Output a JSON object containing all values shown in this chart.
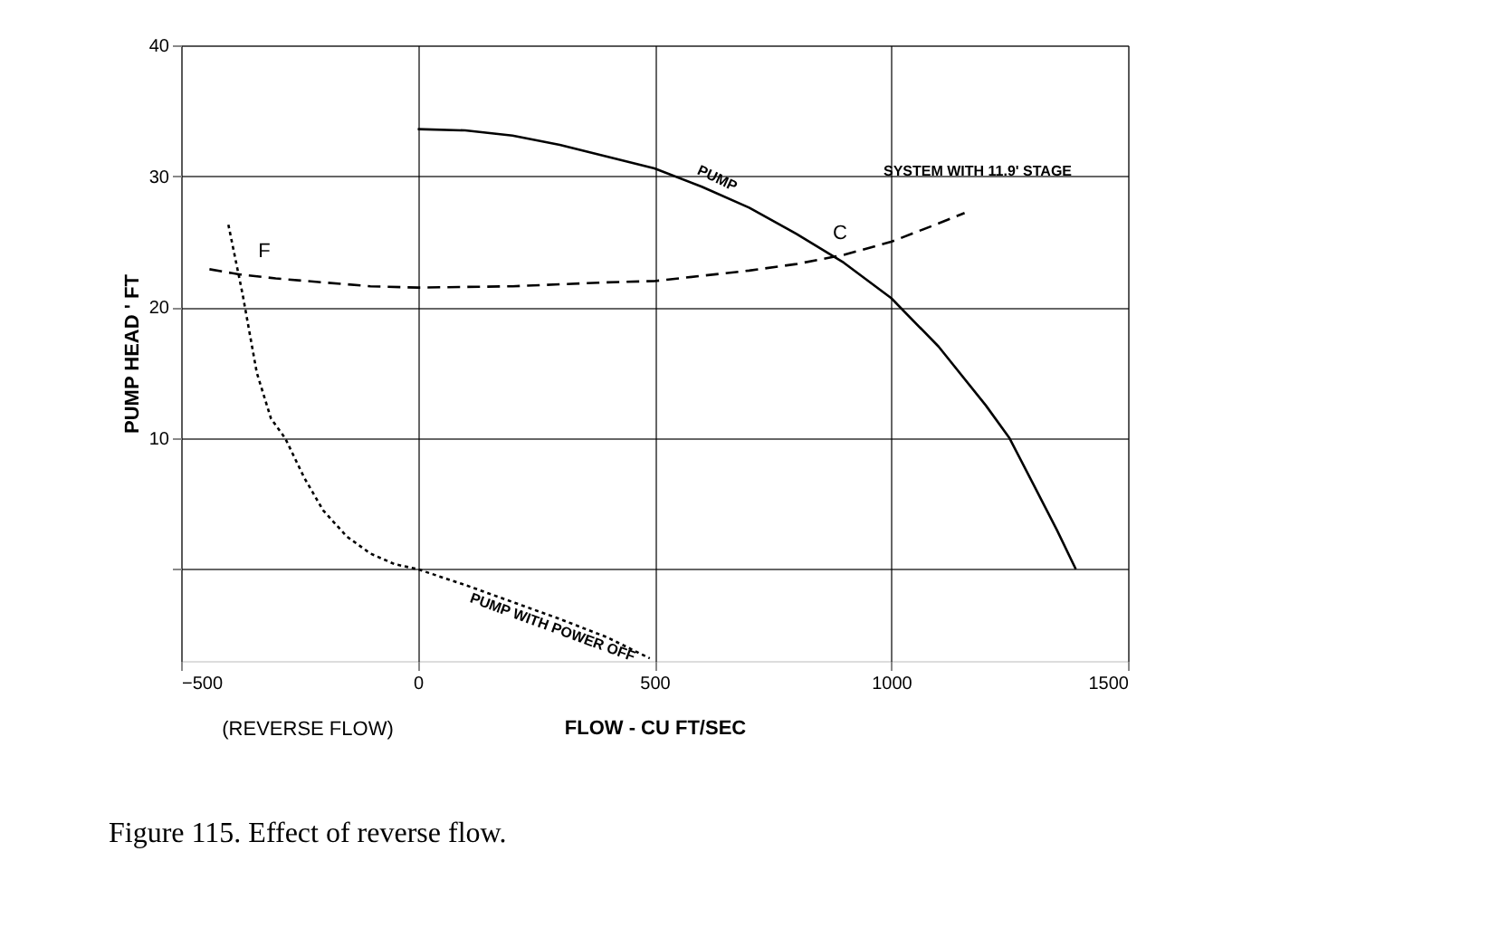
{
  "chart_data": {
    "type": "line",
    "xlabel": "FLOW - CU FT/SEC",
    "ylabel": "PUMP HEAD ' FT",
    "xlim": [
      -500,
      1500
    ],
    "xticks": [
      -500,
      0,
      500,
      {
        "value": 1000,
        "label": "1000"
      },
      {
        "value": 1500,
        "label": "1500"
      }
    ],
    "ylim": [
      -7,
      40
    ],
    "yticks": [
      {
        "value": 0,
        "label": null
      },
      10,
      20,
      30,
      40
    ],
    "grid": true,
    "marker": "none",
    "series": [
      {
        "color": "#000000",
        "line_style": "solid",
        "x": [
          0,
          100,
          200,
          300,
          400,
          500,
          600,
          700,
          800,
          900,
          1000,
          1100,
          1200,
          1250,
          1300,
          1350,
          1390
        ],
        "values": [
          33.6,
          33.5,
          33.1,
          32.4,
          31.5,
          30.6,
          29.2,
          27.6,
          25.6,
          23.4,
          20.7,
          17,
          12.5,
          10,
          6.5,
          3,
          0
        ]
      },
      {
        "color": "#000000",
        "line_style": "dashed",
        "x": [
          -440,
          -375,
          -300,
          -200,
          -100,
          0,
          200,
          400,
          500,
          600,
          700,
          800,
          900,
          1000,
          1100,
          1155
        ],
        "values": [
          22.9,
          22.5,
          22.2,
          21.9,
          21.6,
          21.5,
          21.6,
          21.9,
          22.0,
          22.4,
          22.8,
          23.3,
          24.0,
          25.0,
          26.4,
          27.2
        ]
      },
      {
        "color": "#000000",
        "line_style": "dotted",
        "x": [
          -400,
          -370,
          -340,
          -310,
          -280,
          -240,
          -200,
          -150,
          -100,
          -50,
          0,
          100,
          200,
          300,
          400,
          490
        ],
        "values": [
          26.3,
          21,
          15,
          11.5,
          10,
          7,
          4.5,
          2.5,
          1.2,
          0.4,
          0,
          -1.2,
          -2.5,
          -3.8,
          -5.2,
          -6.8
        ]
      }
    ],
    "annotations": [
      "PUMP",
      "SYSTEM WITH 11.9' STAGE",
      "C",
      "F",
      "PUMP WITH POWER OFF",
      "(REVERSE FLOW)",
      "Figure 115.  Effect of reverse flow."
    ]
  }
}
